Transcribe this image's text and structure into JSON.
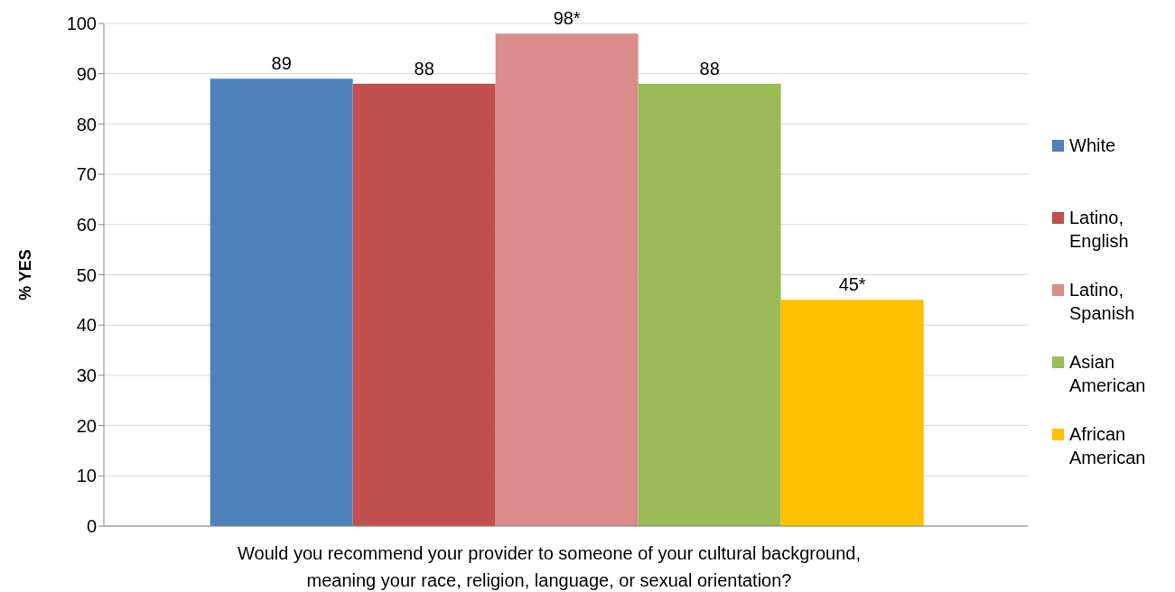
{
  "chart_data": {
    "type": "bar",
    "categories": [
      null
    ],
    "xlabel": "Would you recommend your provider to someone of your cultural background, meaning your race, religion, language, or sexual orientation?",
    "ylabel": "% YES",
    "ylim": [
      0,
      100
    ],
    "yticks": [
      0,
      10,
      20,
      30,
      40,
      50,
      60,
      70,
      80,
      90,
      100
    ],
    "grid": "y",
    "legend": "right",
    "series": [
      {
        "name": "White",
        "color": "#4f81bd",
        "values": [
          89
        ],
        "value_labels": [
          "89"
        ]
      },
      {
        "name": "Latino, English",
        "color": "#c0504d",
        "values": [
          88
        ],
        "value_labels": [
          "88"
        ]
      },
      {
        "name": "Latino, Spanish",
        "color": "#d98c8a",
        "values": [
          98
        ],
        "value_labels": [
          "98*"
        ]
      },
      {
        "name": "Asian American",
        "color": "#9bbb59",
        "values": [
          88
        ],
        "value_labels": [
          "88"
        ]
      },
      {
        "name": "African American",
        "color": "#ffc000",
        "values": [
          45
        ],
        "value_labels": [
          "45*"
        ]
      }
    ]
  }
}
